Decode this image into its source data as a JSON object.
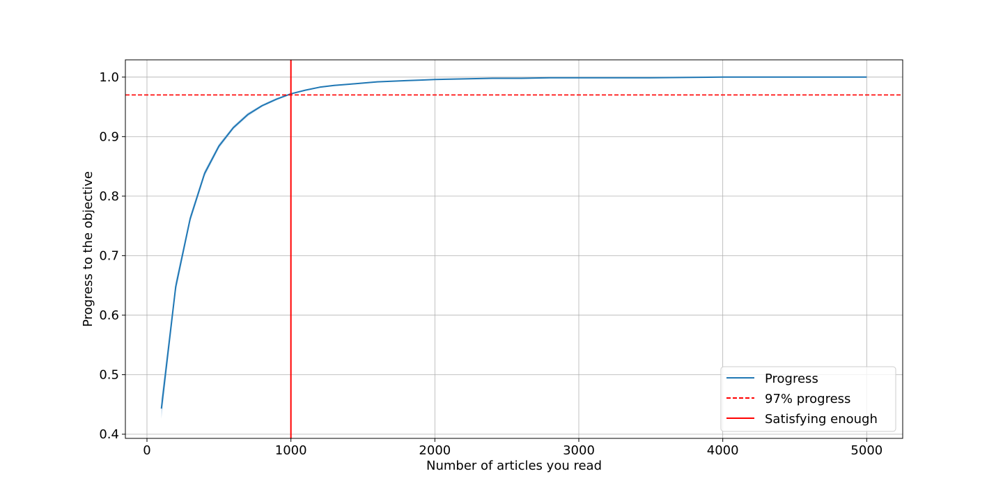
{
  "chart_data": {
    "type": "line",
    "title": "",
    "xlabel": "Number of articles you read",
    "ylabel": "Progress to the objective",
    "xlim": [
      -150,
      5250
    ],
    "ylim": [
      0.393,
      1.029
    ],
    "xticks": [
      0,
      1000,
      2000,
      3000,
      4000,
      5000
    ],
    "xtick_labels": [
      "0",
      "1000",
      "2000",
      "3000",
      "4000",
      "5000"
    ],
    "yticks": [
      0.4,
      0.5,
      0.6,
      0.7,
      0.8,
      0.9,
      1.0
    ],
    "ytick_labels": [
      "0.4",
      "0.5",
      "0.6",
      "0.7",
      "0.8",
      "0.9",
      "1.0"
    ],
    "grid": true,
    "legend_position": "lower-right",
    "series": [
      {
        "name": "Progress",
        "style": "line",
        "color": "#1f77b4",
        "band_color": "#a6c8e4",
        "x": [
          100,
          200,
          300,
          400,
          500,
          600,
          700,
          800,
          900,
          1000,
          1100,
          1200,
          1300,
          1400,
          1500,
          1600,
          1700,
          1800,
          1900,
          2000,
          2200,
          2400,
          2600,
          2800,
          3000,
          3500,
          4000,
          4500,
          5000
        ],
        "values": [
          0.443,
          0.648,
          0.762,
          0.838,
          0.884,
          0.915,
          0.937,
          0.952,
          0.963,
          0.972,
          0.978,
          0.983,
          0.986,
          0.988,
          0.99,
          0.992,
          0.993,
          0.994,
          0.995,
          0.996,
          0.997,
          0.998,
          0.998,
          0.999,
          0.999,
          0.999,
          1.0,
          1.0,
          1.0
        ],
        "band_halfwidth": [
          0.017,
          0.009,
          0.006,
          0.005,
          0.004,
          0.003,
          0.003,
          0.002,
          0.002,
          0.001,
          0.001,
          0.001,
          0.001,
          0.001,
          0.001,
          0.001,
          0.0,
          0.0,
          0.0,
          0.0,
          0.0,
          0.0,
          0.0,
          0.0,
          0.0,
          0.0,
          0.0,
          0.0,
          0.0
        ]
      },
      {
        "name": "97% progress",
        "style": "hline-dashed",
        "color": "#ff0000",
        "y": 0.97
      },
      {
        "name": "Satisfying enough",
        "style": "vline",
        "color": "#ff0000",
        "x": 1000
      }
    ]
  }
}
